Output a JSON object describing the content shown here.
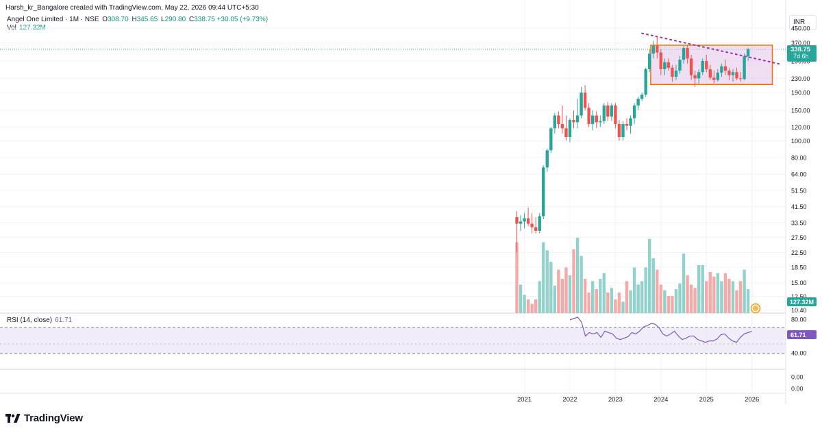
{
  "header": {
    "creator": "Harsh_kr_Bangalore created with TradingView.com, May 22, 2026 09:44 UTC+5:30",
    "symbol": "Angel One Limited · 1M · NSE",
    "open_label": "O",
    "open": "308.70",
    "high_label": "H",
    "high": "345.65",
    "low_label": "L",
    "low": "290.80",
    "close_label": "C",
    "close": "338.75",
    "change": "+30.05 (+9.73%)",
    "vol_label": "Vol",
    "vol": "127.32M"
  },
  "currency": "INR",
  "price_badge": {
    "price": "338.75",
    "countdown": "7d 6h"
  },
  "volume_badge": "127.32M",
  "rsi": {
    "legend": "RSI (14, close)",
    "value": "61.71",
    "badge": "61.71"
  },
  "brand": {
    "name": "TradingView"
  },
  "colors": {
    "up": "#26a69a",
    "down": "#ef5350",
    "vol_up": "#92d2cc",
    "vol_down": "#f7a9a7",
    "rsi": "#7e57c2",
    "box_stroke": "#ff6d00",
    "box_fill": "#e1bee7"
  },
  "chart_data": [
    {
      "type": "candlestick",
      "title": "Angel One Limited · 1M · NSE",
      "scale": "log",
      "ylim": [
        10,
        450
      ],
      "y_ticks": [
        "450.00",
        "370.00",
        "290.00",
        "230.00",
        "190.00",
        "150.00",
        "120.00",
        "100.00",
        "80.00",
        "64.00",
        "51.50",
        "41.50",
        "33.50",
        "27.50",
        "22.50",
        "18.50",
        "15.00",
        "12.50",
        "10.40"
      ],
      "x_ticks": [
        "2021",
        "2022",
        "2023",
        "2024",
        "2025",
        "2026"
      ],
      "candles": [
        [
          36,
          39,
          22.5,
          33
        ],
        [
          33,
          37,
          30,
          34
        ],
        [
          34,
          38,
          31,
          35.5
        ],
        [
          35.5,
          41,
          32,
          33
        ],
        [
          33,
          38,
          29,
          31.5
        ],
        [
          31.5,
          36,
          29,
          30
        ],
        [
          30,
          38,
          29,
          36.5
        ],
        [
          36.5,
          72,
          35,
          70
        ],
        [
          70,
          90,
          66,
          88
        ],
        [
          88,
          120,
          85,
          118
        ],
        [
          118,
          145,
          110,
          140
        ],
        [
          140,
          148,
          118,
          125
        ],
        [
          125,
          160,
          110,
          118
        ],
        [
          118,
          140,
          100,
          105
        ],
        [
          105,
          135,
          98,
          132
        ],
        [
          132,
          150,
          118,
          128
        ],
        [
          128,
          175,
          118,
          140
        ],
        [
          140,
          205,
          135,
          190
        ],
        [
          190,
          210,
          150,
          155
        ],
        [
          155,
          165,
          120,
          125
        ],
        [
          125,
          150,
          115,
          140
        ],
        [
          140,
          148,
          118,
          128
        ],
        [
          128,
          140,
          120,
          130
        ],
        [
          130,
          165,
          125,
          160
        ],
        [
          160,
          168,
          130,
          138
        ],
        [
          138,
          165,
          130,
          160
        ],
        [
          160,
          165,
          118,
          125
        ],
        [
          125,
          132,
          100,
          105
        ],
        [
          105,
          130,
          100,
          125
        ],
        [
          125,
          135,
          115,
          122
        ],
        [
          122,
          140,
          110,
          135
        ],
        [
          135,
          165,
          125,
          160
        ],
        [
          160,
          180,
          150,
          175
        ],
        [
          175,
          190,
          170,
          185
        ],
        [
          185,
          265,
          180,
          260
        ],
        [
          260,
          340,
          250,
          320
        ],
        [
          320,
          380,
          300,
          355
        ],
        [
          355,
          405,
          300,
          325
        ],
        [
          325,
          340,
          240,
          260
        ],
        [
          260,
          300,
          240,
          285
        ],
        [
          285,
          300,
          255,
          265
        ],
        [
          265,
          275,
          220,
          235
        ],
        [
          235,
          275,
          225,
          255
        ],
        [
          255,
          310,
          245,
          295
        ],
        [
          295,
          355,
          280,
          345
        ],
        [
          345,
          360,
          280,
          300
        ],
        [
          300,
          315,
          225,
          240
        ],
        [
          240,
          255,
          205,
          230
        ],
        [
          230,
          260,
          215,
          250
        ],
        [
          250,
          300,
          240,
          290
        ],
        [
          290,
          315,
          250,
          260
        ],
        [
          260,
          275,
          225,
          232
        ],
        [
          232,
          255,
          215,
          225
        ],
        [
          225,
          260,
          220,
          248
        ],
        [
          248,
          280,
          235,
          270
        ],
        [
          270,
          295,
          240,
          255
        ],
        [
          255,
          265,
          225,
          240
        ],
        [
          240,
          260,
          220,
          250
        ],
        [
          250,
          265,
          225,
          230
        ],
        [
          230,
          250,
          220,
          228
        ],
        [
          228,
          320,
          225,
          309
        ],
        [
          308.7,
          345.65,
          290.8,
          338.75
        ]
      ],
      "volume": [
        62,
        25,
        16,
        12,
        8,
        12,
        28,
        62,
        55,
        45,
        24,
        38,
        30,
        40,
        33,
        56,
        66,
        50,
        30,
        18,
        28,
        21,
        30,
        35,
        18,
        22,
        12,
        18,
        10,
        28,
        20,
        40,
        25,
        28,
        40,
        65,
        48,
        38,
        25,
        20,
        15,
        15,
        21,
        26,
        52,
        33,
        25,
        22,
        42,
        42,
        28,
        36,
        32,
        35,
        28,
        35,
        30,
        28,
        20,
        28,
        38,
        21
      ]
    },
    {
      "type": "line",
      "title": "RSI (14, close)",
      "ylim": [
        0,
        100
      ],
      "y_ticks": [
        "80.00",
        "40.00",
        "0.00",
        "0.00"
      ],
      "bands": [
        70,
        30
      ],
      "series": [
        {
          "values": [
            78,
            80,
            82,
            75,
            55,
            60,
            58,
            60,
            53,
            62,
            60,
            58,
            52,
            50,
            52,
            54,
            60,
            58,
            62,
            68,
            70,
            73,
            72,
            67,
            58,
            55,
            58,
            62,
            55,
            50,
            52,
            55,
            55,
            50,
            48,
            46,
            48,
            48,
            51,
            57,
            58,
            52,
            48,
            46,
            53,
            58,
            60,
            62
          ]
        }
      ]
    }
  ]
}
